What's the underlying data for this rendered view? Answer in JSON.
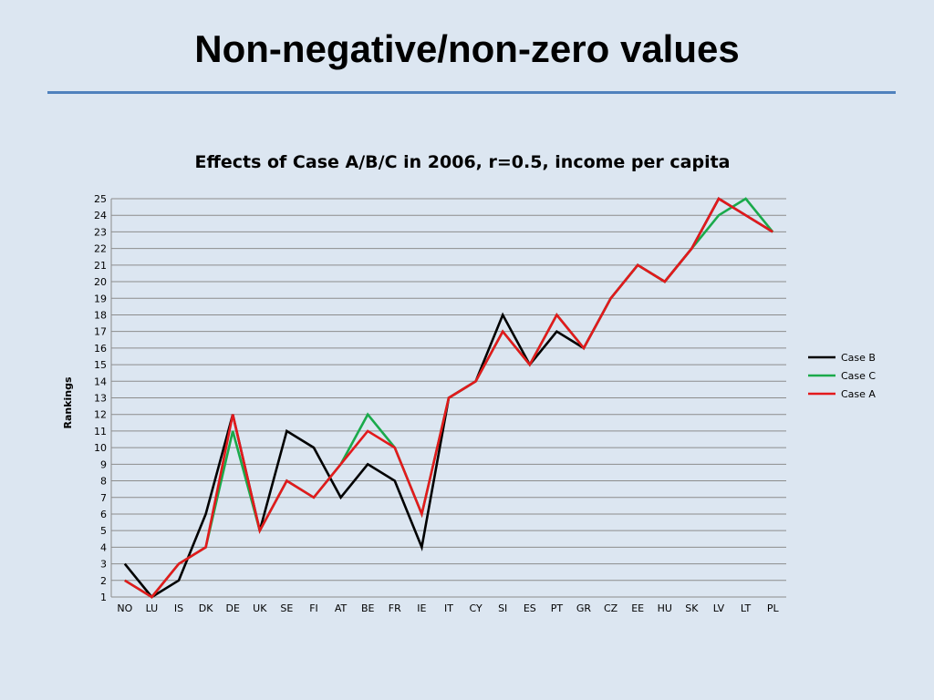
{
  "slide": {
    "title": "Non-negative/non-zero values"
  },
  "chart_data": {
    "type": "line",
    "title": "Effects of Case A/B/C in 2006, r=0.5, income per capita",
    "xlabel": "",
    "ylabel": "Rankings",
    "ylim": [
      1,
      25
    ],
    "grid": true,
    "legend_position": "right",
    "categories": [
      "NO",
      "LU",
      "IS",
      "DK",
      "DE",
      "UK",
      "SE",
      "FI",
      "AT",
      "BE",
      "FR",
      "IE",
      "IT",
      "CY",
      "SI",
      "ES",
      "PT",
      "GR",
      "CZ",
      "EE",
      "HU",
      "SK",
      "LV",
      "LT",
      "PL"
    ],
    "y_ticks": [
      "1",
      "2",
      "3",
      "4",
      "5",
      "6",
      "7",
      "8",
      "9",
      "10",
      "11",
      "12",
      "13",
      "14",
      "15",
      "16",
      "17",
      "18",
      "19",
      "20",
      "21",
      "22",
      "23",
      "24",
      "25"
    ],
    "series": [
      {
        "name": "Case B",
        "color": "#000000",
        "values": [
          3,
          1,
          2,
          6,
          12,
          5,
          11,
          10,
          7,
          9,
          8,
          4,
          13,
          14,
          18,
          15,
          17,
          16,
          19,
          21,
          20,
          22,
          25,
          24,
          23
        ]
      },
      {
        "name": "Case C",
        "color": "#1aaa4b",
        "values": [
          2,
          1,
          3,
          4,
          11,
          5,
          8,
          7,
          9,
          12,
          10,
          6,
          13,
          14,
          17,
          15,
          18,
          16,
          19,
          21,
          20,
          22,
          24,
          25,
          23
        ]
      },
      {
        "name": "Case A",
        "color": "#e3191c",
        "values": [
          2,
          1,
          3,
          4,
          12,
          5,
          8,
          7,
          9,
          11,
          10,
          6,
          13,
          14,
          17,
          15,
          18,
          16,
          19,
          21,
          20,
          22,
          25,
          24,
          23
        ]
      }
    ]
  }
}
